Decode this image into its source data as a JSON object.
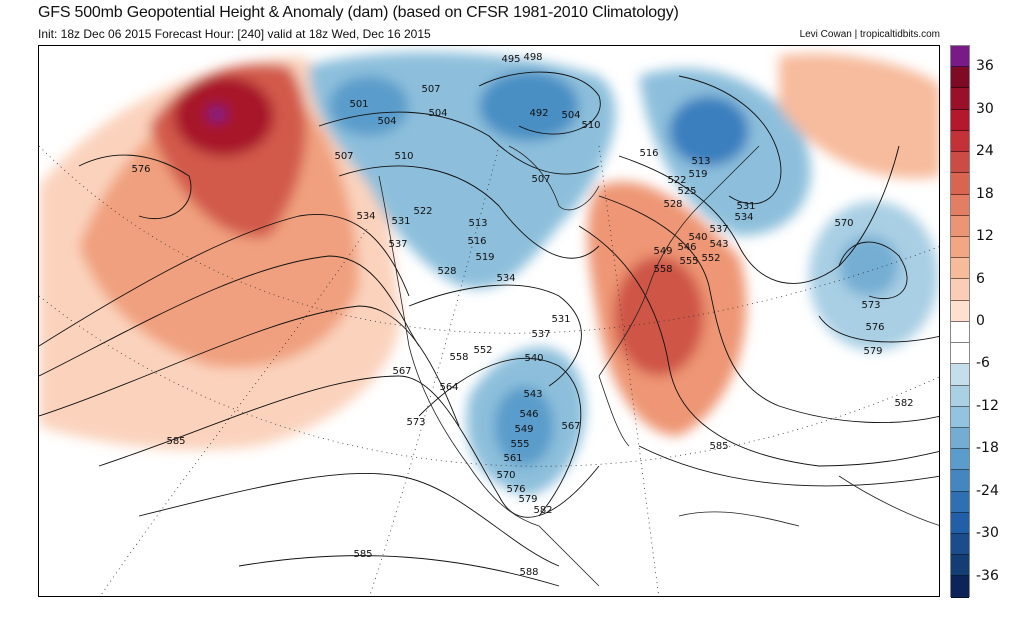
{
  "header": {
    "title": "GFS 500mb Geopotential Height & Anomaly (dam) (based on CFSR 1981-2010 Climatology)",
    "subtitle": "Init: 18z Dec 06 2015   Forecast Hour: [240]   valid at 18z Wed, Dec 16 2015",
    "credit": "Levi Cowan | tropicaltidbits.com"
  },
  "colorbar": {
    "labels": [
      "36",
      "30",
      "24",
      "18",
      "12",
      "6",
      "0",
      "-6",
      "-12",
      "-18",
      "-24",
      "-30",
      "-36"
    ],
    "label_values": [
      36,
      30,
      24,
      18,
      12,
      6,
      0,
      -6,
      -12,
      -18,
      -24,
      -30,
      -36
    ],
    "range": [
      -39,
      39
    ],
    "step": 3,
    "colors": [
      "#7a1a86",
      "#7f0a25",
      "#9a1029",
      "#b3182d",
      "#c23236",
      "#cc4c45",
      "#d9654f",
      "#e37e62",
      "#ec9473",
      "#f3a683",
      "#f7ba9b",
      "#fbcdb6",
      "#fde0d0",
      "#ffffff",
      "#ffffff",
      "#c6deeb",
      "#aad0e4",
      "#93c3de",
      "#74add3",
      "#5a9ccb",
      "#4386c0",
      "#2f70b3",
      "#2160a8",
      "#1b4d8c",
      "#133d73",
      "#0c2458"
    ]
  },
  "contour_labels": [
    "576",
    "585",
    "585",
    "588",
    "582",
    "585",
    "579",
    "576",
    "573",
    "570",
    "501",
    "504",
    "507",
    "510",
    "504",
    "507",
    "495",
    "498",
    "492",
    "504",
    "510",
    "516",
    "513",
    "519",
    "522",
    "525",
    "528",
    "531",
    "534",
    "537",
    "540",
    "543",
    "546",
    "549",
    "552",
    "555",
    "558",
    "534",
    "531",
    "522",
    "537",
    "513",
    "516",
    "519",
    "528",
    "534",
    "531",
    "537",
    "540",
    "552",
    "558",
    "564",
    "567",
    "573",
    "543",
    "546",
    "549",
    "555",
    "561",
    "567",
    "570",
    "576",
    "579",
    "582",
    "507"
  ]
}
